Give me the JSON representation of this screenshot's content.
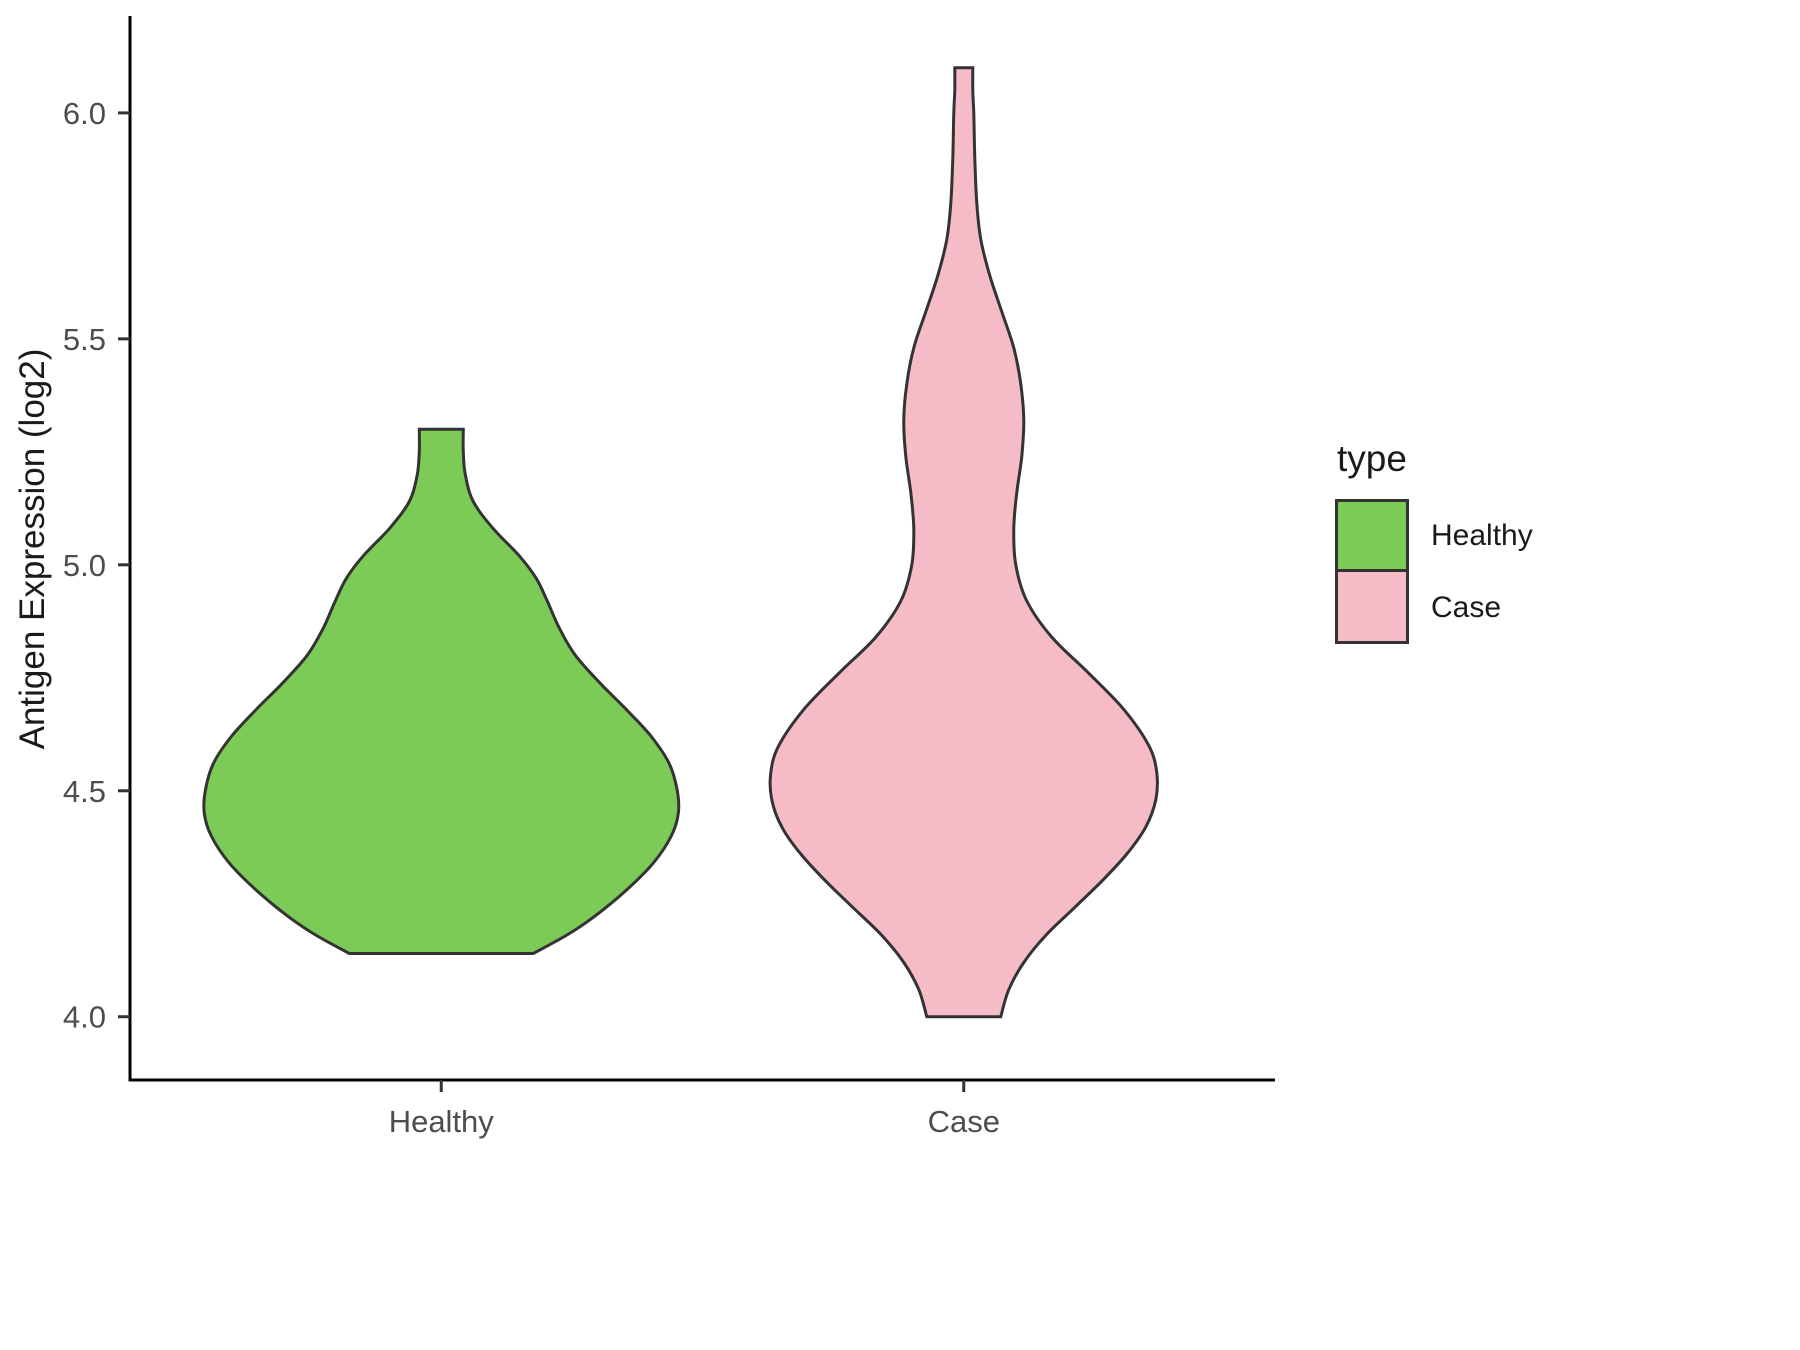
{
  "chart_data": {
    "type": "violin",
    "title": "",
    "xlabel": "",
    "ylabel": "Antigen Expression (log2)",
    "ylim": [
      3.86,
      6.21
    ],
    "yticks": [
      "4.0",
      "4.5",
      "5.0",
      "5.5",
      "6.0"
    ],
    "ytick_values": [
      4.0,
      4.5,
      5.0,
      5.5,
      6.0
    ],
    "categories": [
      "Healthy",
      "Case"
    ],
    "grid": false,
    "legend_position": "right",
    "legend": {
      "title": "type",
      "entries": [
        {
          "label": "Healthy",
          "color": "#7CCB57"
        },
        {
          "label": "Case",
          "color": "#F5BCC8"
        }
      ]
    },
    "outline_color": "#333333",
    "axis_color": "#000000",
    "tick_label_color": "#4d4d4d",
    "series": [
      {
        "name": "Healthy",
        "color": "#7CCB57",
        "profile_note": "pairs of [expression_value, half_width_px]",
        "profile": [
          [
            5.3,
            22
          ],
          [
            5.25,
            22
          ],
          [
            5.2,
            24
          ],
          [
            5.14,
            32
          ],
          [
            5.08,
            52
          ],
          [
            5.02,
            78
          ],
          [
            4.97,
            95
          ],
          [
            4.92,
            106
          ],
          [
            4.86,
            118
          ],
          [
            4.8,
            134
          ],
          [
            4.74,
            158
          ],
          [
            4.68,
            185
          ],
          [
            4.62,
            210
          ],
          [
            4.56,
            228
          ],
          [
            4.5,
            236
          ],
          [
            4.45,
            237
          ],
          [
            4.4,
            230
          ],
          [
            4.34,
            212
          ],
          [
            4.28,
            185
          ],
          [
            4.22,
            152
          ],
          [
            4.18,
            125
          ],
          [
            4.14,
            92
          ]
        ]
      },
      {
        "name": "Case",
        "color": "#F5BCC8",
        "profile_note": "pairs of [expression_value, half_width_px]",
        "profile": [
          [
            6.1,
            9
          ],
          [
            6.05,
            9
          ],
          [
            6.0,
            10
          ],
          [
            5.9,
            11
          ],
          [
            5.8,
            13
          ],
          [
            5.72,
            17
          ],
          [
            5.64,
            26
          ],
          [
            5.56,
            38
          ],
          [
            5.48,
            50
          ],
          [
            5.4,
            57
          ],
          [
            5.32,
            60
          ],
          [
            5.24,
            58
          ],
          [
            5.16,
            53
          ],
          [
            5.08,
            50
          ],
          [
            5.0,
            52
          ],
          [
            4.92,
            63
          ],
          [
            4.84,
            88
          ],
          [
            4.76,
            125
          ],
          [
            4.68,
            160
          ],
          [
            4.6,
            185
          ],
          [
            4.54,
            193
          ],
          [
            4.48,
            192
          ],
          [
            4.42,
            182
          ],
          [
            4.36,
            163
          ],
          [
            4.3,
            138
          ],
          [
            4.24,
            110
          ],
          [
            4.18,
            82
          ],
          [
            4.12,
            60
          ],
          [
            4.06,
            45
          ],
          [
            4.0,
            37
          ]
        ]
      }
    ]
  }
}
